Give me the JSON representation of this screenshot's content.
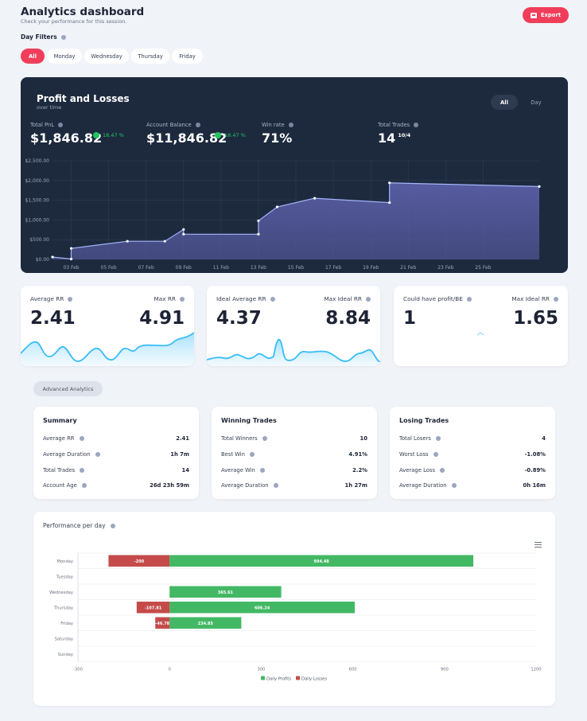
{
  "header": {
    "title": "Analytics dashboard",
    "subtitle": "Check your performance for this session.",
    "export_label": "Export"
  },
  "filters": {
    "label": "Day Filters",
    "options": [
      "All",
      "Monday",
      "Wednesday",
      "Thursday",
      "Friday"
    ],
    "active": "All"
  },
  "pl": {
    "title": "Profit and Losses",
    "subtitle": "over time",
    "toggle": [
      "All",
      "Day"
    ],
    "stats": {
      "total_pnl": {
        "label": "Total PnL",
        "value": "$1,846.82",
        "change": "18.47 %"
      },
      "balance": {
        "label": "Account Balance",
        "value": "$11,846.82",
        "change": "18.47 %"
      },
      "win_rate": {
        "label": "Win rate",
        "value": "71%"
      },
      "total_trades": {
        "label": "Total Trades",
        "value": "14",
        "sup": "10/4"
      }
    }
  },
  "chart_data": [
    {
      "type": "area",
      "title": "",
      "x_ticks": [
        "03 Feb",
        "05 Feb",
        "07 Feb",
        "09 Feb",
        "11 Feb",
        "13 Feb",
        "15 Feb",
        "17 Feb",
        "19 Feb",
        "21 Feb",
        "23 Feb",
        "25 Feb"
      ],
      "y_ticks": [
        "$0.00",
        "$500.00",
        "$1,000.00",
        "$1,500.00",
        "$2,000.00",
        "$2,500.00"
      ],
      "ylim": [
        0,
        2500
      ],
      "grid": true,
      "points": [
        [
          "2 Feb",
          60
        ],
        [
          "3 Feb",
          10
        ],
        [
          "3 Feb",
          280
        ],
        [
          "6 Feb",
          460
        ],
        [
          "8 Feb",
          460
        ],
        [
          "9 Feb",
          760
        ],
        [
          "9 Feb",
          640
        ],
        [
          "13 Feb",
          640
        ],
        [
          "13 Feb",
          980
        ],
        [
          "14 Feb",
          1330
        ],
        [
          "16 Feb",
          1550
        ],
        [
          "20 Feb",
          1440
        ],
        [
          "20 Feb",
          1940
        ],
        [
          "28 Feb",
          1847
        ]
      ],
      "colors": {
        "line": "#a5b4fc",
        "fill": "#5a5ea6"
      }
    },
    {
      "type": "bar",
      "orientation": "horizontal",
      "title": "Performance per day",
      "categories": [
        "Monday",
        "Tuesday",
        "Wednesday",
        "Thursday",
        "Friday",
        "Saturday",
        "Sunday"
      ],
      "series": [
        {
          "name": "Daily Profits",
          "values": [
            994.48,
            0,
            365.61,
            606.24,
            234.85,
            0,
            0
          ],
          "color": "#43b864"
        },
        {
          "name": "Daily Losses",
          "values": [
            -200,
            0,
            0,
            -107.81,
            -46.78,
            0,
            0
          ],
          "color": "#c54b4b"
        }
      ],
      "bar_labels": {
        "profits": [
          "994.48",
          "",
          "365.61",
          "606.24",
          "234.85",
          "",
          ""
        ],
        "losses": [
          "-200",
          "",
          "",
          "-107.81",
          "-46.78",
          "",
          ""
        ]
      },
      "x_ticks": [
        "-300",
        "0",
        "300",
        "600",
        "900",
        "1200"
      ],
      "xlim": [
        -300,
        1200
      ],
      "legend": "bottom"
    }
  ],
  "rr_cards": [
    {
      "label_left": "Average RR",
      "value_left": "2.41",
      "label_right": "Max RR",
      "value_right": "4.91"
    },
    {
      "label_left": "Ideal Average RR",
      "value_left": "4.37",
      "label_right": "Max Ideal RR",
      "value_right": "8.84"
    },
    {
      "label_left": "Could have profit/BE",
      "value_left": "1",
      "label_right": "Max Ideal RR",
      "value_right": "1.65"
    }
  ],
  "advanced_label": "Advanced Analytics",
  "summary_cards": [
    {
      "title": "Summary",
      "rows": [
        {
          "label": "Average RR",
          "value": "2.41"
        },
        {
          "label": "Average Duration",
          "value": "1h 7m"
        },
        {
          "label": "Total Trades",
          "value": "14"
        },
        {
          "label": "Account Age",
          "value": "26d 23h 59m"
        }
      ]
    },
    {
      "title": "Winning Trades",
      "rows": [
        {
          "label": "Total Winners",
          "value": "10"
        },
        {
          "label": "Best Win",
          "value": "4.91%"
        },
        {
          "label": "Average Win",
          "value": "2.2%"
        },
        {
          "label": "Average Duration",
          "value": "1h 27m"
        }
      ]
    },
    {
      "title": "Losing Trades",
      "rows": [
        {
          "label": "Total Losers",
          "value": "4"
        },
        {
          "label": "Worst Loss",
          "value": "-1.08%"
        },
        {
          "label": "Average Loss",
          "value": "-0.89%"
        },
        {
          "label": "Average Duration",
          "value": "0h 16m"
        }
      ]
    }
  ],
  "colors": {
    "accent": "#f03e5a",
    "dark_card": "#1d2a3e",
    "positive": "#22c55e",
    "sparkline": "#38bdf8"
  }
}
